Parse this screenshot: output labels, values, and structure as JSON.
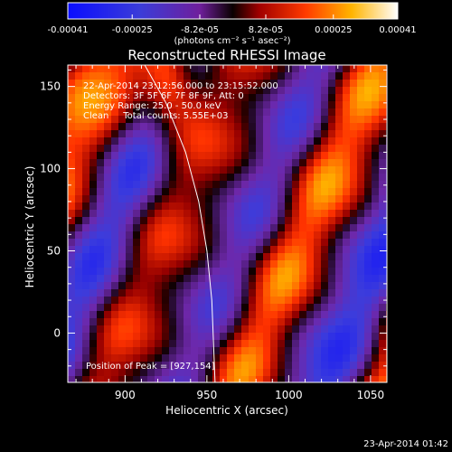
{
  "colorbar": {
    "ticks": [
      "-0.00041",
      "-0.00025",
      "-8.2e-05",
      "8.2e-05",
      "0.00025",
      "0.00041"
    ],
    "units_text": "(photons cm⁻² s⁻¹ asec⁻²)",
    "range": [
      -0.00041,
      0.00041
    ]
  },
  "chart_data": {
    "type": "heatmap",
    "title": "Reconstructed RHESSI Image",
    "xlabel": "Heliocentric X (arcsec)",
    "ylabel": "Heliocentric Y (arcsec)",
    "xlim": [
      865,
      1060
    ],
    "ylim": [
      -30,
      163
    ],
    "xticks": [
      900,
      950,
      1000,
      1050
    ],
    "yticks": [
      0,
      50,
      100,
      150
    ],
    "annotations": [
      "22-Apr-2014 23:12:56.000 to 23:15:52.000",
      "Detectors: 3F 5F 6F 7F 8F 9F, Att: 0",
      "Energy Range: 25.0 - 50.0 keV",
      "Clean     Total counts: 5.55E+03"
    ],
    "peak_label": "Position of Peak = [927,154]",
    "peak": {
      "x": 927,
      "y": 154
    },
    "colormap": "blue-purple-black-red-yellow-white",
    "limb_curve": [
      [
        912,
        163
      ],
      [
        925,
        140
      ],
      [
        937,
        110
      ],
      [
        945,
        80
      ],
      [
        950,
        50
      ],
      [
        953,
        20
      ],
      [
        955,
        -30
      ]
    ]
  },
  "footer": {
    "date": "23-Apr-2014 01:42"
  }
}
